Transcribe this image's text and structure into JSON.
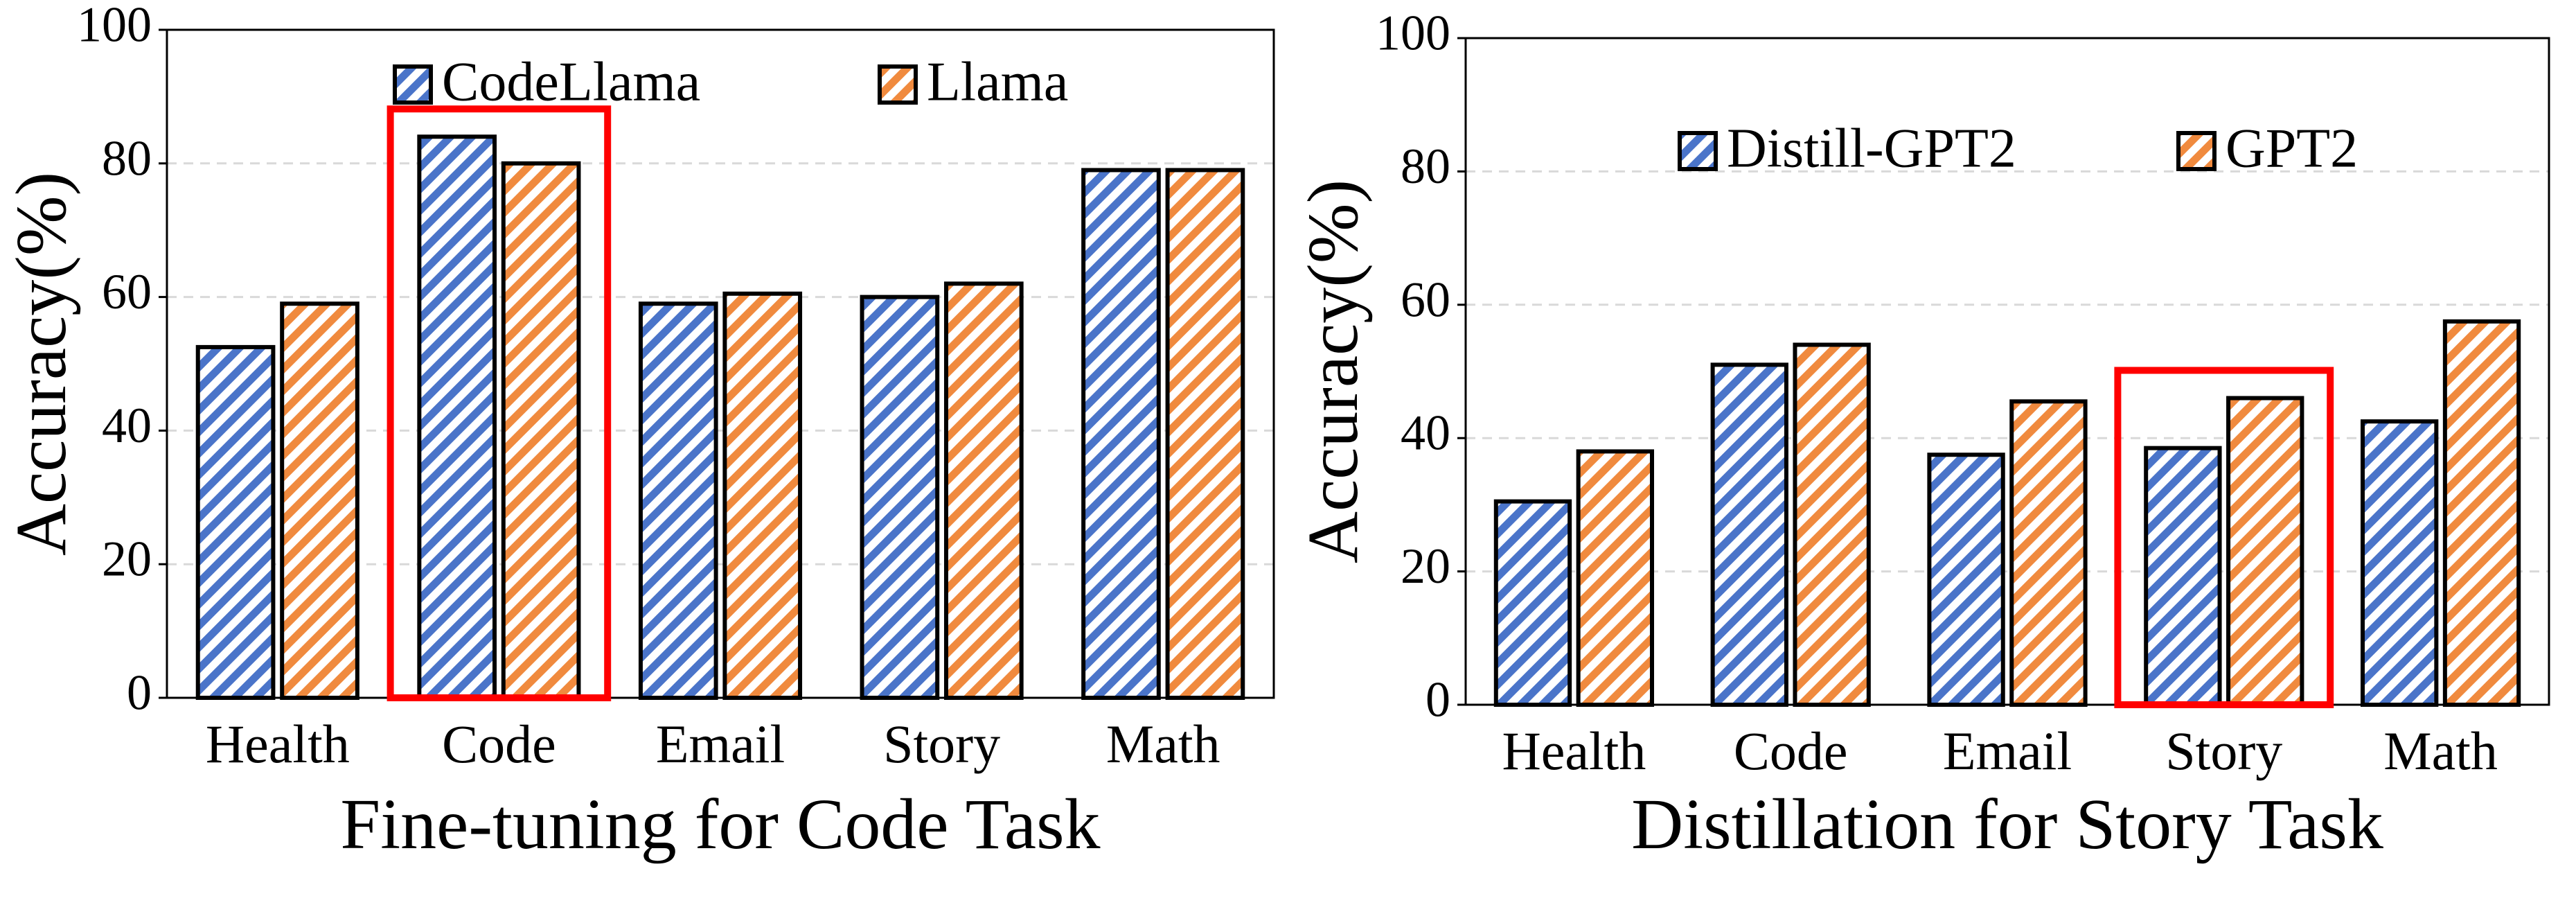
{
  "chart_data": [
    {
      "type": "bar",
      "xlabel": "Fine-tuning for Code Task",
      "ylabel": "Accuracy(%)",
      "categories": [
        "Health",
        "Code",
        "Email",
        "Story",
        "Math"
      ],
      "series": [
        {
          "name": "CodeLlama",
          "color": "#4a74c9",
          "values": [
            52.5,
            84,
            59,
            60,
            79
          ]
        },
        {
          "name": "Llama",
          "color": "#f08a3e",
          "values": [
            59,
            80,
            60.5,
            62,
            79
          ]
        }
      ],
      "ylim": [
        0,
        100
      ],
      "yticks": [
        0,
        20,
        40,
        60,
        80,
        100
      ],
      "grid": true,
      "legend": "upper center",
      "highlight": 1
    },
    {
      "type": "bar",
      "xlabel": "Distillation for Story Task",
      "ylabel": "Accuracy(%)",
      "categories": [
        "Health",
        "Code",
        "Email",
        "Story",
        "Math"
      ],
      "series": [
        {
          "name": "Distill-GPT2",
          "color": "#4a74c9",
          "values": [
            30.5,
            51,
            37.5,
            38.5,
            42.5
          ]
        },
        {
          "name": "GPT2",
          "color": "#f08a3e",
          "values": [
            38,
            54,
            45.5,
            46,
            57.5
          ]
        }
      ],
      "ylim": [
        0,
        100
      ],
      "yticks": [
        0,
        20,
        40,
        60,
        80,
        100
      ],
      "grid": true,
      "legend": "upper center",
      "highlight": 3
    }
  ]
}
